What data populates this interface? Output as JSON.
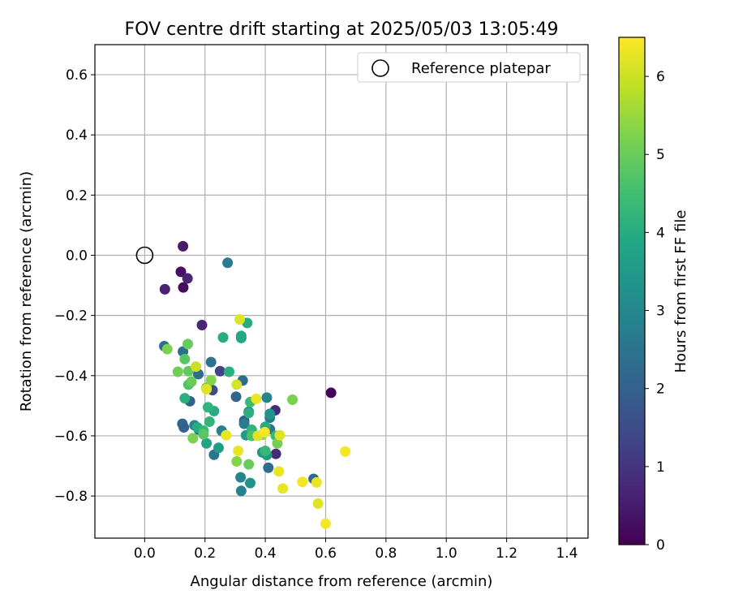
{
  "chart_data": {
    "type": "scatter",
    "title": "FOV centre drift starting at 2025/05/03 13:05:49",
    "xlabel": "Angular distance from reference (arcmin)",
    "ylabel": "Rotation from reference (arcmin)",
    "xlim": [
      -0.165,
      1.47
    ],
    "ylim": [
      -0.94,
      0.7
    ],
    "x_ticks": [
      0.0,
      0.2,
      0.4,
      0.6,
      0.8,
      1.0,
      1.2,
      1.4
    ],
    "x_tick_labels": [
      "0.0",
      "0.2",
      "0.4",
      "0.6",
      "0.8",
      "1.0",
      "1.2",
      "1.4"
    ],
    "y_ticks": [
      0.6,
      0.4,
      0.2,
      0.0,
      -0.2,
      -0.4,
      -0.6,
      -0.8
    ],
    "y_tick_labels": [
      "0.6",
      "0.4",
      "0.2",
      "0.0",
      "−0.2",
      "−0.4",
      "−0.6",
      "−0.8"
    ],
    "grid": true,
    "colormap": "viridis",
    "colorbar": {
      "label": "Hours from first FF file",
      "range": [
        0,
        6.5
      ],
      "ticks": [
        0,
        1,
        2,
        3,
        4,
        5,
        6
      ],
      "tick_labels": [
        "0",
        "1",
        "2",
        "3",
        "4",
        "5",
        "6"
      ]
    },
    "legend": {
      "position": "top-right",
      "entries": [
        {
          "label": "Reference platepar",
          "marker": "open-circle"
        }
      ]
    },
    "reference_point": {
      "x": 0.0,
      "y": 0.0
    },
    "series": [
      {
        "points": [
          [
            0.127,
            0.03,
            0.5
          ],
          [
            0.067,
            -0.113,
            0.6
          ],
          [
            0.12,
            -0.055,
            0.3
          ],
          [
            0.128,
            -0.107,
            0.2
          ],
          [
            0.142,
            -0.077,
            0.7
          ],
          [
            0.275,
            -0.025,
            2.7
          ],
          [
            0.19,
            -0.232,
            0.7
          ],
          [
            0.618,
            -0.457,
            0.1
          ],
          [
            0.433,
            -0.515,
            0.8
          ],
          [
            0.435,
            -0.66,
            0.8
          ],
          [
            0.065,
            -0.302,
            2.3
          ],
          [
            0.127,
            -0.32,
            2.4
          ],
          [
            0.15,
            -0.485,
            2.1
          ],
          [
            0.22,
            -0.355,
            2.5
          ],
          [
            0.25,
            -0.385,
            1.3
          ],
          [
            0.225,
            -0.448,
            1.6
          ],
          [
            0.303,
            -0.47,
            2.1
          ],
          [
            0.325,
            -0.416,
            2.3
          ],
          [
            0.33,
            -0.55,
            1.9
          ],
          [
            0.345,
            -0.52,
            2.6
          ],
          [
            0.125,
            -0.56,
            2.1
          ],
          [
            0.13,
            -0.572,
            2.0
          ],
          [
            0.165,
            -0.565,
            2.9
          ],
          [
            0.18,
            -0.58,
            2.4
          ],
          [
            0.23,
            -0.663,
            2.5
          ],
          [
            0.255,
            -0.583,
            2.8
          ],
          [
            0.33,
            -0.56,
            2.7
          ],
          [
            0.318,
            -0.738,
            2.9
          ],
          [
            0.32,
            -0.783,
            2.8
          ],
          [
            0.41,
            -0.706,
            2.3
          ],
          [
            0.405,
            -0.473,
            2.9
          ],
          [
            0.415,
            -0.578,
            2.5
          ],
          [
            0.56,
            -0.743,
            2.2
          ],
          [
            0.415,
            -0.54,
            2.7
          ],
          [
            0.178,
            -0.395,
            2.3
          ],
          [
            0.35,
            -0.757,
            3.3
          ],
          [
            0.39,
            -0.655,
            3.4
          ],
          [
            0.405,
            -0.664,
            3.5
          ],
          [
            0.336,
            -0.598,
            3.5
          ],
          [
            0.415,
            -0.527,
            3.3
          ],
          [
            0.205,
            -0.625,
            3.8
          ],
          [
            0.23,
            -0.518,
            4.0
          ],
          [
            0.245,
            -0.64,
            3.6
          ],
          [
            0.133,
            -0.475,
            4.1
          ],
          [
            0.175,
            -0.572,
            4.0
          ],
          [
            0.195,
            -0.583,
            4.3
          ],
          [
            0.21,
            -0.505,
            4.2
          ],
          [
            0.215,
            -0.553,
            4.2
          ],
          [
            0.26,
            -0.273,
            4.0
          ],
          [
            0.28,
            -0.387,
            4.1
          ],
          [
            0.32,
            -0.268,
            4.0
          ],
          [
            0.32,
            -0.275,
            3.9
          ],
          [
            0.34,
            -0.225,
            4.0
          ],
          [
            0.345,
            -0.524,
            4.1
          ],
          [
            0.35,
            -0.488,
            4.4
          ],
          [
            0.355,
            -0.58,
            4.2
          ],
          [
            0.355,
            -0.6,
            4.6
          ],
          [
            0.4,
            -0.57,
            4.0
          ],
          [
            0.4,
            -0.65,
            4.3
          ],
          [
            0.435,
            -0.6,
            4.3
          ],
          [
            0.075,
            -0.312,
            5.2
          ],
          [
            0.11,
            -0.387,
            5.1
          ],
          [
            0.133,
            -0.345,
            4.8
          ],
          [
            0.143,
            -0.295,
            5.0
          ],
          [
            0.145,
            -0.385,
            4.9
          ],
          [
            0.145,
            -0.43,
            4.7
          ],
          [
            0.155,
            -0.42,
            5.0
          ],
          [
            0.16,
            -0.608,
            5.2
          ],
          [
            0.195,
            -0.595,
            4.8
          ],
          [
            0.205,
            -0.44,
            5.2
          ],
          [
            0.22,
            -0.415,
            5.3
          ],
          [
            0.305,
            -0.685,
            5.3
          ],
          [
            0.345,
            -0.695,
            5.0
          ],
          [
            0.39,
            -0.596,
            5.3
          ],
          [
            0.44,
            -0.625,
            5.1
          ],
          [
            0.49,
            -0.48,
            5.2
          ],
          [
            0.17,
            -0.37,
            6.0
          ],
          [
            0.205,
            -0.445,
            6.2
          ],
          [
            0.27,
            -0.598,
            6.3
          ],
          [
            0.305,
            -0.43,
            6.1
          ],
          [
            0.31,
            -0.65,
            6.3
          ],
          [
            0.315,
            -0.213,
            6.2
          ],
          [
            0.37,
            -0.477,
            6.3
          ],
          [
            0.375,
            -0.6,
            6.2
          ],
          [
            0.398,
            -0.588,
            6.4
          ],
          [
            0.445,
            -0.718,
            6.3
          ],
          [
            0.448,
            -0.598,
            6.2
          ],
          [
            0.458,
            -0.775,
            6.3
          ],
          [
            0.523,
            -0.753,
            6.4
          ],
          [
            0.57,
            -0.755,
            6.3
          ],
          [
            0.575,
            -0.825,
            6.2
          ],
          [
            0.6,
            -0.892,
            6.4
          ],
          [
            0.665,
            -0.652,
            6.4
          ]
        ]
      }
    ]
  }
}
